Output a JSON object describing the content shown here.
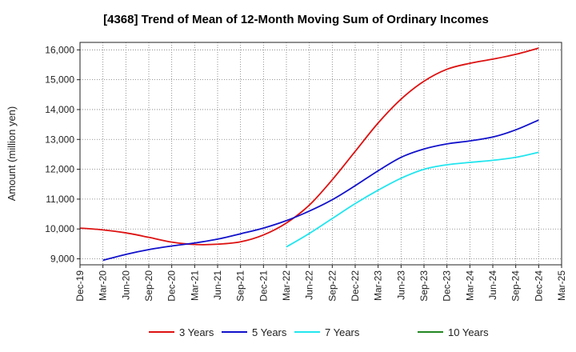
{
  "chart_data": {
    "type": "line",
    "title": "[4368]  Trend of Mean of 12-Month Moving Sum of Ordinary Incomes",
    "xlabel": "",
    "ylabel": "Amount (million yen)",
    "ylim": [
      8800,
      16250
    ],
    "y_ticks": [
      9000,
      10000,
      11000,
      12000,
      13000,
      14000,
      15000,
      16000
    ],
    "y_tick_labels": [
      "9,000",
      "10,000",
      "11,000",
      "12,000",
      "13,000",
      "14,000",
      "15,000",
      "16,000"
    ],
    "x_tick_labels": [
      "Dec-19",
      "Mar-20",
      "Jun-20",
      "Sep-20",
      "Dec-20",
      "Mar-21",
      "Jun-21",
      "Sep-21",
      "Dec-21",
      "Mar-22",
      "Jun-22",
      "Sep-22",
      "Dec-22",
      "Mar-23",
      "Jun-23",
      "Sep-23",
      "Dec-23",
      "Mar-24",
      "Jun-24",
      "Sep-24",
      "Dec-24",
      "Mar-25"
    ],
    "grid": true,
    "legend_position": "bottom",
    "series": [
      {
        "name": "3 Years",
        "color": "#dd1111",
        "points": [
          [
            0,
            10030
          ],
          [
            1,
            9970
          ],
          [
            2,
            9870
          ],
          [
            3,
            9720
          ],
          [
            4,
            9560
          ],
          [
            5,
            9480
          ],
          [
            6,
            9490
          ],
          [
            7,
            9570
          ],
          [
            8,
            9800
          ],
          [
            9,
            10200
          ],
          [
            10,
            10800
          ],
          [
            11,
            11650
          ],
          [
            12,
            12600
          ],
          [
            13,
            13550
          ],
          [
            14,
            14350
          ],
          [
            15,
            14950
          ],
          [
            16,
            15350
          ],
          [
            17,
            15550
          ],
          [
            18,
            15690
          ],
          [
            19,
            15850
          ],
          [
            20,
            16060
          ]
        ]
      },
      {
        "name": "5 Years",
        "color": "#1111cc",
        "points": [
          [
            1,
            8950
          ],
          [
            2,
            9150
          ],
          [
            3,
            9310
          ],
          [
            4,
            9430
          ],
          [
            5,
            9530
          ],
          [
            6,
            9660
          ],
          [
            7,
            9840
          ],
          [
            8,
            10030
          ],
          [
            9,
            10280
          ],
          [
            10,
            10600
          ],
          [
            11,
            10980
          ],
          [
            12,
            11450
          ],
          [
            13,
            11950
          ],
          [
            14,
            12400
          ],
          [
            15,
            12680
          ],
          [
            16,
            12850
          ],
          [
            17,
            12950
          ],
          [
            18,
            13080
          ],
          [
            19,
            13320
          ],
          [
            20,
            13650
          ]
        ]
      },
      {
        "name": "7 Years",
        "color": "#22e5ee",
        "points": [
          [
            9,
            9400
          ],
          [
            10,
            9850
          ],
          [
            11,
            10350
          ],
          [
            12,
            10850
          ],
          [
            13,
            11300
          ],
          [
            14,
            11700
          ],
          [
            15,
            12000
          ],
          [
            16,
            12150
          ],
          [
            17,
            12230
          ],
          [
            18,
            12300
          ],
          [
            19,
            12400
          ],
          [
            20,
            12570
          ]
        ]
      },
      {
        "name": "10 Years",
        "color": "#228822",
        "points": []
      }
    ]
  }
}
